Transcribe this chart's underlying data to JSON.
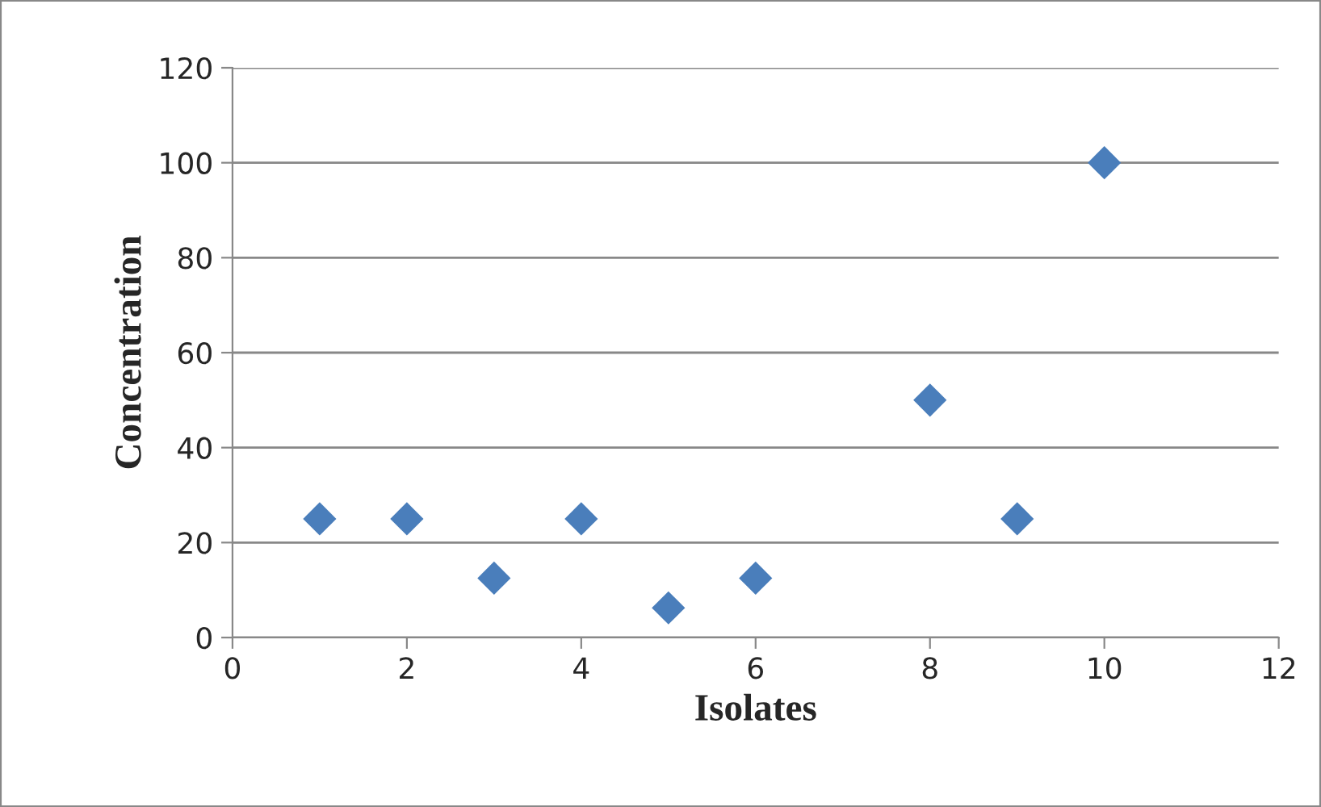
{
  "chart_data": {
    "type": "scatter",
    "xlabel": "Isolates",
    "ylabel": "Concentration",
    "x": [
      1,
      2,
      3,
      4,
      5,
      6,
      8,
      9,
      10
    ],
    "series": [
      {
        "color": "#4a7ebb",
        "values": [
          25,
          25,
          12.5,
          25,
          6.25,
          12.5,
          50,
          25,
          100
        ]
      }
    ],
    "xlim": [
      0,
      12
    ],
    "xticks": [
      0,
      2,
      4,
      6,
      8,
      10,
      12
    ],
    "ylim": [
      0,
      120
    ],
    "yticks": [
      0,
      20,
      40,
      60,
      80,
      100,
      120
    ],
    "grid": "y",
    "marker": "diamond",
    "legend": false
  }
}
